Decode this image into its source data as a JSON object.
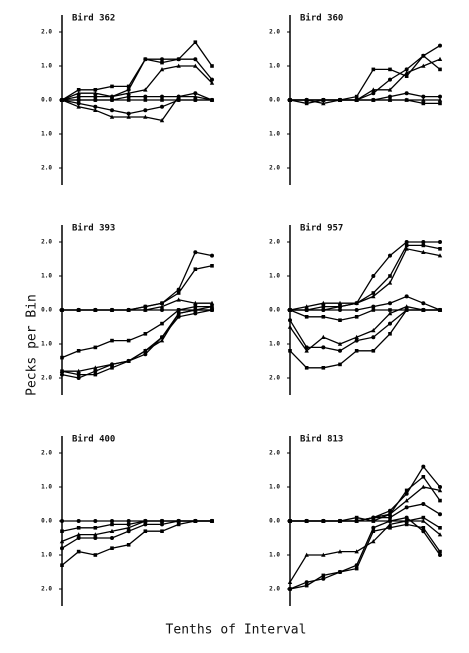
{
  "y_label": "Pecks per Bin",
  "x_label": "Tenths of Interval",
  "chart_data": [
    {
      "type": "line",
      "title": "Bird 362",
      "color": "#000000",
      "xlim": [
        1,
        10
      ],
      "ylim": [
        -2.5,
        2.5
      ],
      "yticks": [
        {
          "value": 2,
          "label": "2.0"
        },
        {
          "value": 1,
          "label": "1.0"
        },
        {
          "value": 0,
          "label": "0.0"
        },
        {
          "value": -1,
          "label": "1.0"
        },
        {
          "value": -2,
          "label": "2.0"
        }
      ],
      "x": [
        1,
        2,
        3,
        4,
        5,
        6,
        7,
        8,
        9,
        10
      ],
      "series": [
        {
          "values": [
            0,
            0.1,
            0.1,
            0.1,
            0.3,
            1.2,
            1.2,
            1.2,
            1.2,
            0.6
          ]
        },
        {
          "values": [
            0,
            0.3,
            0.3,
            0.4,
            0.4,
            1.2,
            1.1,
            1.2,
            1.7,
            1.0
          ]
        },
        {
          "values": [
            0,
            0.2,
            0.2,
            0.1,
            0.2,
            0.3,
            0.9,
            1.0,
            1.0,
            0.5
          ]
        },
        {
          "values": [
            0,
            0,
            0,
            0,
            0.1,
            0.1,
            0.1,
            0.1,
            0.2,
            0
          ]
        },
        {
          "values": [
            0,
            0,
            0,
            0,
            0,
            0,
            0,
            0,
            0,
            0
          ]
        },
        {
          "values": [
            0,
            -0.2,
            -0.3,
            -0.5,
            -0.5,
            -0.5,
            -0.6,
            0.1,
            0.1,
            0
          ]
        },
        {
          "values": [
            0,
            -0.1,
            -0.2,
            -0.3,
            -0.4,
            -0.3,
            -0.2,
            0,
            0,
            0
          ]
        }
      ]
    },
    {
      "type": "line",
      "title": "Bird 360",
      "color": "#000000",
      "xlim": [
        1,
        10
      ],
      "ylim": [
        -2.5,
        2.5
      ],
      "yticks": [
        {
          "value": 2,
          "label": "2.0"
        },
        {
          "value": 1,
          "label": "1.0"
        },
        {
          "value": 0,
          "label": "0.0"
        },
        {
          "value": -1,
          "label": "1.0"
        },
        {
          "value": -2,
          "label": "2.0"
        }
      ],
      "x": [
        1,
        2,
        3,
        4,
        5,
        6,
        7,
        8,
        9,
        10
      ],
      "series": [
        {
          "values": [
            0,
            0,
            0,
            0,
            0,
            0.2,
            0.6,
            0.9,
            1.3,
            1.6
          ]
        },
        {
          "values": [
            0,
            0,
            0,
            0,
            0.1,
            0.9,
            0.9,
            0.7,
            1.3,
            0.9
          ]
        },
        {
          "values": [
            0,
            0,
            0,
            0,
            0,
            0.3,
            0.3,
            0.8,
            1.0,
            1.2
          ]
        },
        {
          "values": [
            0,
            0,
            0,
            0,
            0,
            0,
            0.1,
            0.2,
            0.1,
            0.1
          ]
        },
        {
          "values": [
            0,
            -0.1,
            0,
            0,
            0,
            0,
            0,
            0,
            -0.1,
            -0.1
          ]
        },
        {
          "values": [
            0,
            0,
            -0.1,
            0,
            0,
            0,
            0,
            0,
            0,
            0
          ]
        }
      ]
    },
    {
      "type": "line",
      "title": "Bird 393",
      "color": "#000000",
      "xlim": [
        1,
        10
      ],
      "ylim": [
        -2.5,
        2.5
      ],
      "yticks": [
        {
          "value": 2,
          "label": "2.0"
        },
        {
          "value": 1,
          "label": "1.0"
        },
        {
          "value": 0,
          "label": "0.0"
        },
        {
          "value": -1,
          "label": "1.0"
        },
        {
          "value": -2,
          "label": "2.0"
        }
      ],
      "x": [
        1,
        2,
        3,
        4,
        5,
        6,
        7,
        8,
        9,
        10
      ],
      "series": [
        {
          "values": [
            0,
            0,
            0,
            0,
            0,
            0.1,
            0.2,
            0.6,
            1.7,
            1.6
          ]
        },
        {
          "values": [
            0,
            0,
            0,
            0,
            0,
            0.1,
            0.2,
            0.5,
            1.2,
            1.3
          ]
        },
        {
          "values": [
            0,
            0,
            0,
            0,
            0,
            0,
            0.1,
            0.3,
            0.2,
            0.2
          ]
        },
        {
          "values": [
            0,
            0,
            0,
            0,
            0,
            0,
            0,
            0,
            0,
            0
          ]
        },
        {
          "values": [
            -1.4,
            -1.2,
            -1.1,
            -0.9,
            -0.9,
            -0.7,
            -0.4,
            0,
            0.1,
            0.1
          ]
        },
        {
          "values": [
            -1.8,
            -1.8,
            -1.7,
            -1.6,
            -1.5,
            -1.2,
            -0.9,
            -0.1,
            0,
            0.1
          ]
        },
        {
          "values": [
            -1.9,
            -2.0,
            -1.8,
            -1.6,
            -1.5,
            -1.3,
            -0.8,
            -0.2,
            -0.1,
            0
          ]
        },
        {
          "values": [
            -1.8,
            -1.9,
            -1.9,
            -1.7,
            -1.5,
            -1.2,
            -0.8,
            -0.1,
            0,
            0
          ]
        }
      ]
    },
    {
      "type": "line",
      "title": "Bird 957",
      "color": "#000000",
      "xlim": [
        1,
        10
      ],
      "ylim": [
        -2.5,
        2.5
      ],
      "yticks": [
        {
          "value": 2,
          "label": "2.0"
        },
        {
          "value": 1,
          "label": "1.0"
        },
        {
          "value": 0,
          "label": "0.0"
        },
        {
          "value": -1,
          "label": "1.0"
        },
        {
          "value": -2,
          "label": "2.0"
        }
      ],
      "x": [
        1,
        2,
        3,
        4,
        5,
        6,
        7,
        8,
        9,
        10
      ],
      "series": [
        {
          "values": [
            0,
            0,
            0,
            0.1,
            0.2,
            1.0,
            1.6,
            2.0,
            2.0,
            2.0
          ]
        },
        {
          "values": [
            0,
            0,
            0.1,
            0.1,
            0.2,
            0.5,
            1.0,
            1.9,
            1.9,
            1.8
          ]
        },
        {
          "values": [
            0,
            0.1,
            0.2,
            0.2,
            0.2,
            0.4,
            0.8,
            1.8,
            1.7,
            1.6
          ]
        },
        {
          "values": [
            0,
            0,
            0,
            0,
            0,
            0.1,
            0.2,
            0.4,
            0.2,
            0
          ]
        },
        {
          "values": [
            0,
            -0.2,
            -0.2,
            -0.3,
            -0.2,
            0,
            0,
            0,
            0,
            0
          ]
        },
        {
          "values": [
            -0.5,
            -1.2,
            -0.8,
            -1.0,
            -0.8,
            -0.6,
            -0.1,
            0.1,
            0,
            0
          ]
        },
        {
          "values": [
            -0.3,
            -1.1,
            -1.1,
            -1.2,
            -0.9,
            -0.8,
            -0.4,
            0,
            0,
            0
          ]
        },
        {
          "values": [
            -1.2,
            -1.7,
            -1.7,
            -1.6,
            -1.2,
            -1.2,
            -0.7,
            0,
            0,
            0
          ]
        }
      ]
    },
    {
      "type": "line",
      "title": "Bird 400",
      "color": "#000000",
      "xlim": [
        1,
        10
      ],
      "ylim": [
        -2.5,
        2.5
      ],
      "yticks": [
        {
          "value": 2,
          "label": "2.0"
        },
        {
          "value": 1,
          "label": "1.0"
        },
        {
          "value": 0,
          "label": "0.0"
        },
        {
          "value": -1,
          "label": "1.0"
        },
        {
          "value": -2,
          "label": "2.0"
        }
      ],
      "x": [
        1,
        2,
        3,
        4,
        5,
        6,
        7,
        8,
        9,
        10
      ],
      "series": [
        {
          "values": [
            0,
            0,
            0,
            0,
            0,
            0,
            0,
            0,
            0,
            0
          ]
        },
        {
          "values": [
            -0.3,
            -0.2,
            -0.2,
            -0.1,
            -0.1,
            0,
            0,
            0,
            0,
            0
          ]
        },
        {
          "values": [
            -0.6,
            -0.4,
            -0.4,
            -0.3,
            -0.2,
            0,
            0,
            0,
            0,
            0
          ]
        },
        {
          "values": [
            -0.8,
            -0.5,
            -0.5,
            -0.5,
            -0.3,
            -0.1,
            -0.1,
            0,
            0,
            0
          ]
        },
        {
          "values": [
            -1.3,
            -0.9,
            -1.0,
            -0.8,
            -0.7,
            -0.3,
            -0.3,
            -0.1,
            0,
            0
          ]
        }
      ]
    },
    {
      "type": "line",
      "title": "Bird 813",
      "color": "#000000",
      "xlim": [
        1,
        10
      ],
      "ylim": [
        -2.5,
        2.5
      ],
      "yticks": [
        {
          "value": 2,
          "label": "2.0"
        },
        {
          "value": 1,
          "label": "1.0"
        },
        {
          "value": 0,
          "label": "0.0"
        },
        {
          "value": -1,
          "label": "1.0"
        },
        {
          "value": -2,
          "label": "2.0"
        }
      ],
      "x": [
        1,
        2,
        3,
        4,
        5,
        6,
        7,
        8,
        9,
        10
      ],
      "series": [
        {
          "values": [
            0,
            0,
            0,
            0,
            0,
            0.1,
            0.3,
            0.8,
            1.6,
            1.0
          ]
        },
        {
          "values": [
            0,
            0,
            0,
            0,
            0.1,
            0,
            0.2,
            0.9,
            1.3,
            0.6
          ]
        },
        {
          "values": [
            0,
            0,
            0,
            0,
            0,
            0.1,
            0.2,
            0.6,
            1.0,
            0.9
          ]
        },
        {
          "values": [
            0,
            0,
            0,
            0,
            0,
            0.1,
            0.1,
            0.4,
            0.5,
            0.2
          ]
        },
        {
          "values": [
            0,
            0,
            0,
            0,
            0,
            0,
            0,
            0,
            0.1,
            -0.2
          ]
        },
        {
          "values": [
            -1.8,
            -1.0,
            -1.0,
            -0.9,
            -0.9,
            -0.6,
            -0.1,
            0,
            0,
            -0.4
          ]
        },
        {
          "values": [
            -2.0,
            -1.8,
            -1.7,
            -1.5,
            -1.3,
            -0.2,
            0,
            0.1,
            -0.3,
            -1.0
          ]
        },
        {
          "values": [
            -2.0,
            -1.9,
            -1.6,
            -1.5,
            -1.4,
            -0.3,
            -0.2,
            -0.1,
            -0.2,
            -0.9
          ]
        }
      ]
    }
  ]
}
